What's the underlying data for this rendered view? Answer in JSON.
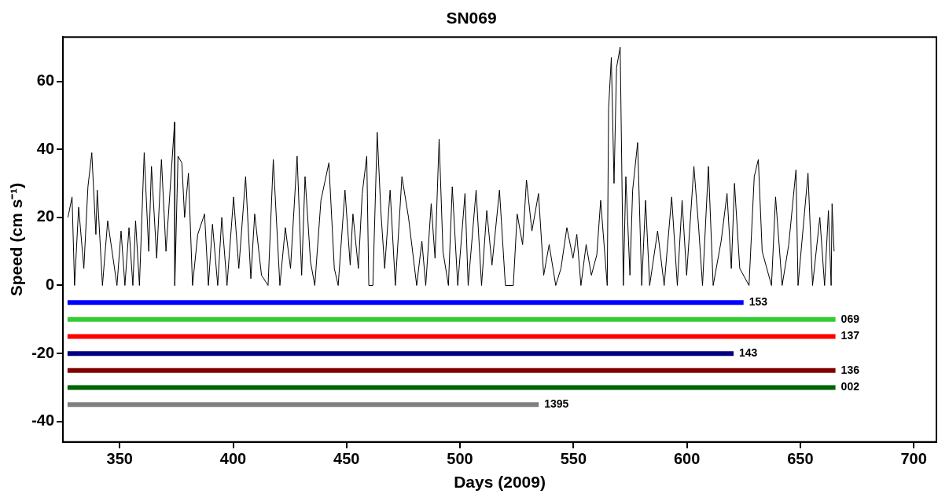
{
  "chart_data": {
    "type": "line",
    "title": "SN069",
    "xlabel": "Days (2009)",
    "ylabel": "Speed (cm s⁻¹)",
    "xlim": [
      325,
      710
    ],
    "xticks": [
      350,
      400,
      450,
      500,
      550,
      600,
      650,
      700
    ],
    "ylim": [
      -46,
      73
    ],
    "yticks": [
      -40,
      -20,
      0,
      20,
      40,
      60
    ],
    "grid": false,
    "legend": false,
    "series": [
      {
        "color": "#000000",
        "x": [
          327.2,
          329,
          330.1,
          331.9,
          334.2,
          336,
          337.7,
          339.5,
          340.1,
          342.4,
          344.7,
          348.8,
          350.6,
          352.3,
          354.1,
          355.8,
          357,
          358.7,
          360.8,
          362.8,
          364,
          366.3,
          368.4,
          370.4,
          372.5,
          374.2,
          374.3,
          375.7,
          377.4,
          378.6,
          380.3,
          382.1,
          384.4,
          387.4,
          389.1,
          390.9,
          393.2,
          395,
          397.3,
          400.2,
          402.5,
          405.5,
          407.8,
          409.5,
          412.5,
          415.4,
          417.7,
          420.6,
          423,
          425.3,
          428.2,
          430.2,
          431.7,
          434.1,
          436,
          438.7,
          442.2,
          444.6,
          446.3,
          449.3,
          451.6,
          452.8,
          455.2,
          456.9,
          458.9,
          459.8,
          461.6,
          463.5,
          465.1,
          466.8,
          469.2,
          471.5,
          474.4,
          477.3,
          480.9,
          483.2,
          484.9,
          487.3,
          489,
          490.8,
          492.5,
          494.9,
          496.6,
          499,
          502.2,
          503.6,
          507.1,
          509.5,
          511.8,
          514.1,
          517.4,
          520,
          523.5,
          525.2,
          527.6,
          529.3,
          531.7,
          534.6,
          536.9,
          539.3,
          542.2,
          544.5,
          547.1,
          549.8,
          551.5,
          553.3,
          555.6,
          557.9,
          560.3,
          562,
          564.9,
          565.5,
          566.7,
          567.9,
          569,
          570.6,
          572,
          573.1,
          574.9,
          576.1,
          578.3,
          580.1,
          581.8,
          583.6,
          587.1,
          590,
          593.3,
          595.8,
          597.9,
          599.9,
          603.1,
          605.2,
          606.9,
          609.5,
          611.6,
          615.1,
          617.7,
          619.6,
          621,
          623.3,
          627.4,
          629.7,
          631.5,
          633.2,
          637.3,
          639.1,
          642,
          644.9,
          648.1,
          649,
          653.4,
          655.4,
          658.6,
          660.7,
          662.4,
          663.6,
          664,
          664.9
        ],
        "values": [
          20,
          26,
          0,
          23,
          5,
          29,
          39,
          15,
          28,
          0,
          19,
          0,
          16,
          0,
          17,
          0,
          19,
          0,
          39,
          10,
          35,
          8,
          37,
          10,
          31,
          48,
          0,
          38,
          36,
          20,
          33,
          0,
          15,
          21,
          0,
          18,
          0,
          20,
          0,
          26,
          5,
          32,
          2,
          21,
          3,
          0,
          37,
          0,
          17,
          5,
          38,
          3,
          32,
          7,
          0,
          25,
          36,
          5,
          0,
          28,
          6,
          21,
          5,
          27,
          38,
          0,
          0,
          45,
          22,
          5,
          28,
          0,
          32,
          20,
          0,
          13,
          0,
          24,
          8,
          43,
          10,
          0,
          29,
          0,
          27,
          0,
          28,
          0,
          22,
          6,
          28,
          0,
          0,
          21,
          12,
          31,
          16,
          27,
          3,
          12,
          0,
          5,
          17,
          8,
          15,
          0,
          12,
          3,
          9,
          25,
          0,
          52,
          67,
          30,
          64,
          70,
          0,
          32,
          3,
          28,
          42,
          0,
          25,
          0,
          16,
          0,
          26,
          0,
          25,
          3,
          35,
          17,
          0,
          35,
          0,
          13,
          27,
          5,
          30,
          5,
          0,
          32,
          37,
          10,
          0,
          26,
          0,
          12,
          34,
          0,
          33,
          0,
          20,
          0,
          22,
          0,
          24,
          10
        ]
      },
      {
        "name": "153",
        "color": "#0000ff",
        "x": [
          327,
          625
        ],
        "values": [
          -5,
          -5
        ]
      },
      {
        "name": "069",
        "color": "#33cc33",
        "x": [
          327,
          665.5
        ],
        "values": [
          -10,
          -10
        ]
      },
      {
        "name": "137",
        "color": "#ff0000",
        "x": [
          327,
          665.5
        ],
        "values": [
          -15,
          -15
        ]
      },
      {
        "name": "143",
        "color": "#000080",
        "x": [
          327,
          620.6
        ],
        "values": [
          -20,
          -20
        ]
      },
      {
        "name": "136",
        "color": "#800000",
        "x": [
          327,
          665.5
        ],
        "values": [
          -25,
          -25
        ]
      },
      {
        "name": "002",
        "color": "#006400",
        "x": [
          327,
          665.5
        ],
        "values": [
          -30,
          -30
        ]
      },
      {
        "name": "1395",
        "color": "#808080",
        "x": [
          327,
          534.7
        ],
        "values": [
          -35,
          -35
        ]
      }
    ]
  }
}
